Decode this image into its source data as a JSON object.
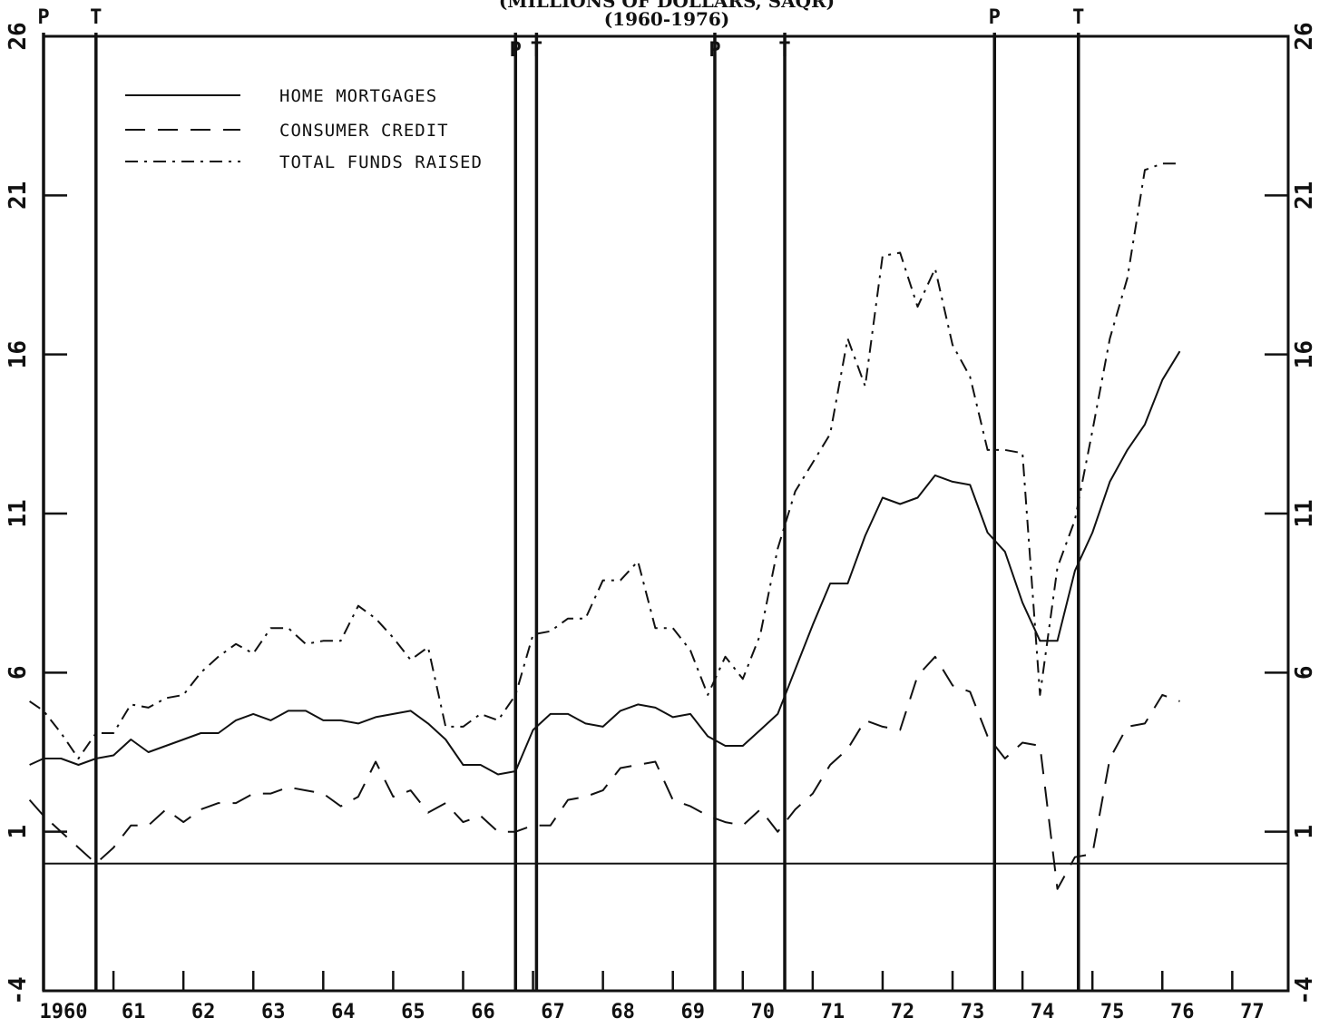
{
  "chart_data": {
    "type": "line",
    "title_line1": "(MILLIONS OF DOLLARS, SAQR)",
    "title_line2": "(1960-1976)",
    "xlim": [
      1960,
      1977.8
    ],
    "ylim": [
      -4,
      26
    ],
    "yticks": [
      -4,
      1,
      6,
      11,
      16,
      21,
      26
    ],
    "ytick_labels": [
      "-4",
      "1",
      "6",
      "11",
      "16",
      "21",
      "26"
    ],
    "xticks": [
      {
        "year": 1960,
        "label": "1960"
      },
      {
        "year": 1961,
        "label": "61"
      },
      {
        "year": 1962,
        "label": "62"
      },
      {
        "year": 1963,
        "label": "63"
      },
      {
        "year": 1964,
        "label": "64"
      },
      {
        "year": 1965,
        "label": "65"
      },
      {
        "year": 1966,
        "label": "66"
      },
      {
        "year": 1967,
        "label": "67"
      },
      {
        "year": 1968,
        "label": "68"
      },
      {
        "year": 1969,
        "label": "69"
      },
      {
        "year": 1970,
        "label": "70"
      },
      {
        "year": 1971,
        "label": "71"
      },
      {
        "year": 1972,
        "label": "72"
      },
      {
        "year": 1973,
        "label": "73"
      },
      {
        "year": 1974,
        "label": "74"
      },
      {
        "year": 1975,
        "label": "75"
      },
      {
        "year": 1976,
        "label": "76"
      },
      {
        "year": 1977,
        "label": "77"
      }
    ],
    "zero_line": 0,
    "turning_points": [
      {
        "year": 1960.0,
        "type": "P"
      },
      {
        "year": 1960.75,
        "type": "T"
      },
      {
        "year": 1966.75,
        "type": "P"
      },
      {
        "year": 1967.05,
        "type": "T"
      },
      {
        "year": 1969.6,
        "type": "P"
      },
      {
        "year": 1970.6,
        "type": "T"
      },
      {
        "year": 1973.6,
        "type": "P"
      },
      {
        "year": 1974.8,
        "type": "T"
      }
    ],
    "series": [
      {
        "name": "HOME MORTGAGES",
        "style": "solid",
        "x": [
          1959.8,
          1960.0,
          1960.25,
          1960.5,
          1960.75,
          1961.0,
          1961.25,
          1961.5,
          1961.75,
          1962.0,
          1962.25,
          1962.5,
          1962.75,
          1963.0,
          1963.25,
          1963.5,
          1963.75,
          1964.0,
          1964.25,
          1964.5,
          1964.75,
          1965.0,
          1965.25,
          1965.5,
          1965.75,
          1966.0,
          1966.25,
          1966.5,
          1966.75,
          1967.0,
          1967.25,
          1967.5,
          1967.75,
          1968.0,
          1968.25,
          1968.5,
          1968.75,
          1969.0,
          1969.25,
          1969.5,
          1969.75,
          1970.0,
          1970.25,
          1970.5,
          1970.75,
          1971.0,
          1971.25,
          1971.5,
          1971.75,
          1972.0,
          1972.25,
          1972.5,
          1972.75,
          1973.0,
          1973.25,
          1973.5,
          1973.75,
          1974.0,
          1974.25,
          1974.5,
          1974.75,
          1975.0,
          1975.25,
          1975.5,
          1975.75,
          1976.0,
          1976.25
        ],
        "values": [
          3.1,
          3.3,
          3.3,
          3.1,
          3.3,
          3.4,
          3.9,
          3.5,
          3.7,
          3.9,
          4.1,
          4.1,
          4.5,
          4.7,
          4.5,
          4.8,
          4.8,
          4.5,
          4.5,
          4.4,
          4.6,
          4.7,
          4.8,
          4.4,
          3.9,
          3.1,
          3.1,
          2.8,
          2.9,
          4.2,
          4.7,
          4.7,
          4.4,
          4.3,
          4.8,
          5.0,
          4.9,
          4.6,
          4.7,
          4.0,
          3.7,
          3.7,
          4.2,
          4.7,
          6.1,
          7.5,
          8.8,
          8.8,
          10.3,
          11.5,
          11.3,
          11.5,
          12.2,
          12.0,
          11.9,
          10.4,
          9.8,
          8.2,
          7.0,
          7.0,
          9.2,
          10.4,
          12.0,
          13.0,
          13.8,
          15.2,
          16.1
        ]
      },
      {
        "name": "CONSUMER CREDIT",
        "style": "dashed",
        "x": [
          1959.8,
          1960.0,
          1960.25,
          1960.5,
          1960.75,
          1961.0,
          1961.25,
          1961.5,
          1961.75,
          1962.0,
          1962.25,
          1962.5,
          1962.75,
          1963.0,
          1963.25,
          1963.5,
          1963.75,
          1964.0,
          1964.25,
          1964.5,
          1964.75,
          1965.0,
          1965.25,
          1965.5,
          1965.75,
          1966.0,
          1966.25,
          1966.5,
          1966.75,
          1967.0,
          1967.25,
          1967.5,
          1967.75,
          1968.0,
          1968.25,
          1968.5,
          1968.75,
          1969.0,
          1969.25,
          1969.5,
          1969.75,
          1970.0,
          1970.25,
          1970.5,
          1970.75,
          1971.0,
          1971.25,
          1971.5,
          1971.75,
          1972.0,
          1972.25,
          1972.5,
          1972.75,
          1973.0,
          1973.25,
          1973.5,
          1973.75,
          1974.0,
          1974.25,
          1974.5,
          1974.75,
          1975.0,
          1975.25,
          1975.5,
          1975.75,
          1976.0,
          1976.25
        ],
        "values": [
          2.0,
          1.5,
          1.0,
          0.5,
          0.0,
          0.5,
          1.2,
          1.2,
          1.7,
          1.3,
          1.7,
          1.9,
          1.9,
          2.2,
          2.2,
          2.4,
          2.3,
          2.2,
          1.8,
          2.1,
          3.2,
          2.1,
          2.3,
          1.6,
          1.9,
          1.3,
          1.5,
          1.0,
          1.0,
          1.2,
          1.2,
          2.0,
          2.1,
          2.3,
          3.0,
          3.1,
          3.2,
          2.0,
          1.8,
          1.5,
          1.3,
          1.2,
          1.7,
          1.0,
          1.7,
          2.2,
          3.1,
          3.6,
          4.5,
          4.3,
          4.2,
          5.9,
          6.5,
          5.6,
          5.4,
          4.0,
          3.3,
          3.8,
          3.7,
          -0.8,
          0.2,
          0.3,
          3.3,
          4.3,
          4.4,
          5.3,
          5.1
        ]
      },
      {
        "name": "TOTAL FUNDS RAISED",
        "style": "dashdot",
        "x": [
          1959.8,
          1960.0,
          1960.25,
          1960.5,
          1960.75,
          1961.0,
          1961.25,
          1961.5,
          1961.75,
          1962.0,
          1962.25,
          1962.5,
          1962.75,
          1963.0,
          1963.25,
          1963.5,
          1963.75,
          1964.0,
          1964.25,
          1964.5,
          1964.75,
          1965.0,
          1965.25,
          1965.5,
          1965.75,
          1966.0,
          1966.25,
          1966.5,
          1966.75,
          1967.0,
          1967.25,
          1967.5,
          1967.75,
          1968.0,
          1968.25,
          1968.5,
          1968.75,
          1969.0,
          1969.25,
          1969.5,
          1969.75,
          1970.0,
          1970.25,
          1970.5,
          1970.75,
          1971.0,
          1971.25,
          1971.5,
          1971.75,
          1972.0,
          1972.25,
          1972.5,
          1972.75,
          1973.0,
          1973.25,
          1973.5,
          1973.75,
          1974.0,
          1974.25,
          1974.5,
          1974.75,
          1975.0,
          1975.25,
          1975.5,
          1975.75,
          1976.0,
          1976.25
        ],
        "values": [
          5.1,
          4.8,
          4.1,
          3.3,
          4.1,
          4.1,
          5.0,
          4.9,
          5.2,
          5.3,
          6.0,
          6.5,
          6.9,
          6.6,
          7.4,
          7.4,
          6.9,
          7.0,
          7.0,
          8.1,
          7.7,
          7.1,
          6.4,
          6.8,
          4.3,
          4.3,
          4.7,
          4.5,
          5.3,
          7.2,
          7.3,
          7.7,
          7.7,
          8.9,
          8.9,
          9.5,
          7.4,
          7.4,
          6.7,
          5.3,
          6.5,
          5.8,
          7.2,
          9.9,
          11.7,
          12.6,
          13.5,
          16.5,
          15.0,
          19.1,
          19.2,
          17.5,
          18.7,
          16.3,
          15.3,
          13.0,
          13.0,
          12.9,
          5.3,
          9.3,
          10.8,
          13.6,
          16.5,
          18.4,
          21.8,
          22.0,
          22.0
        ]
      }
    ],
    "legend": {
      "placement": "top-left",
      "entries": [
        "HOME MORTGAGES",
        "CONSUMER CREDIT",
        "TOTAL FUNDS RAISED"
      ]
    }
  }
}
